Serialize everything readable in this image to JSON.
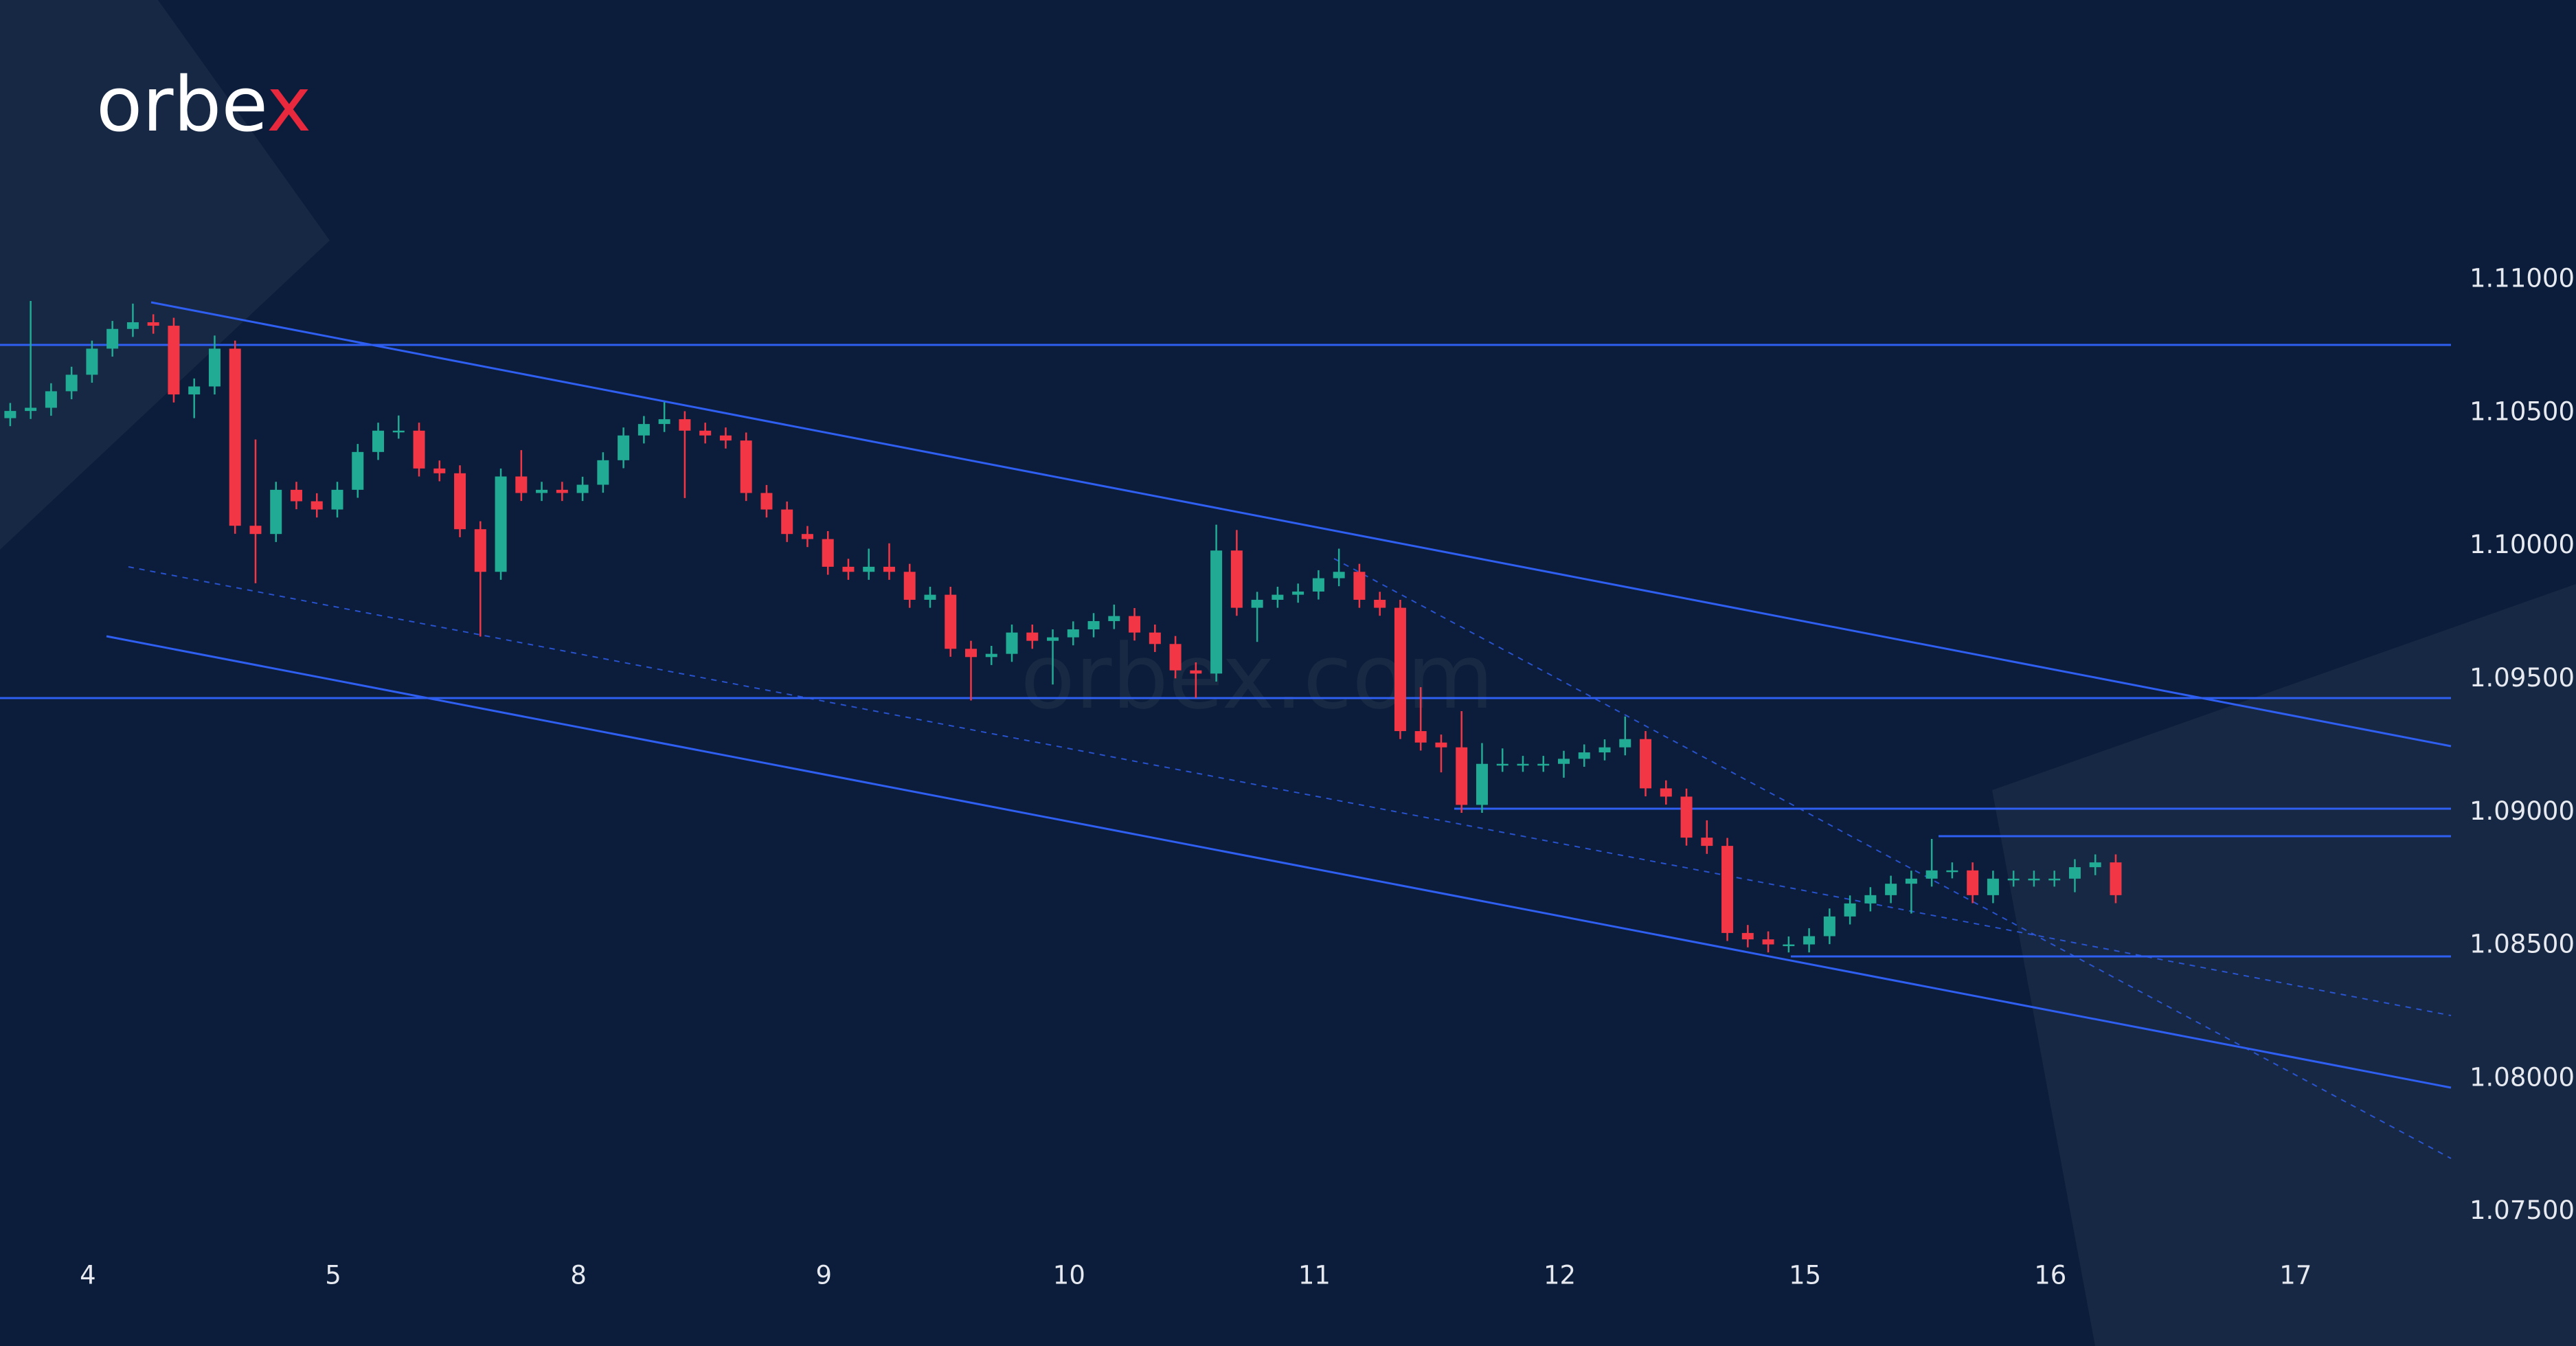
{
  "logo": {
    "main": "orbe",
    "accent": "x"
  },
  "watermark": "orbex.com",
  "chart_data": {
    "type": "candlestick",
    "up_color": "#22ab94",
    "down_color": "#f23645",
    "xlim": [
      -0.5,
      119.4
    ],
    "xticks": [
      {
        "value": 3.8,
        "label": "4"
      },
      {
        "value": 15.8,
        "label": "5"
      },
      {
        "value": 27.8,
        "label": "8"
      },
      {
        "value": 39.8,
        "label": "9"
      },
      {
        "value": 51.8,
        "label": "10"
      },
      {
        "value": 63.8,
        "label": "11"
      },
      {
        "value": 75.8,
        "label": "12"
      },
      {
        "value": 87.8,
        "label": "15"
      },
      {
        "value": 99.8,
        "label": "16"
      },
      {
        "value": 111.8,
        "label": "17"
      }
    ],
    "ylim": [
      1.0736,
      1.1205
    ],
    "yticks": [
      {
        "value": 1.075,
        "label": "1.07500"
      },
      {
        "value": 1.08,
        "label": "1.08000"
      },
      {
        "value": 1.085,
        "label": "1.08500"
      },
      {
        "value": 1.09,
        "label": "1.09000"
      },
      {
        "value": 1.095,
        "label": "1.09500"
      },
      {
        "value": 1.1,
        "label": "1.10000"
      },
      {
        "value": 1.105,
        "label": "1.10500"
      },
      {
        "value": 1.11,
        "label": "1.11000"
      }
    ],
    "open": [
      1.1048,
      1.10507,
      1.10519,
      1.10581,
      1.10643,
      1.10741,
      1.10815,
      1.1084,
      1.10827,
      1.10569,
      1.10599,
      1.10741,
      1.10076,
      1.10045,
      1.10211,
      1.10168,
      1.10137,
      1.10211,
      1.10353,
      1.10433,
      1.10433,
      1.10291,
      1.10273,
      1.10063,
      1.09903,
      1.10261,
      1.10199,
      1.10211,
      1.10199,
      1.1023,
      1.10322,
      1.10415,
      1.10458,
      1.10476,
      1.10433,
      1.10415,
      1.10396,
      1.10199,
      1.10137,
      1.10045,
      1.10026,
      1.09922,
      1.09903,
      1.09922,
      1.09903,
      1.09798,
      1.09817,
      1.09614,
      1.09583,
      1.09595,
      1.09675,
      1.09644,
      1.09657,
      1.09687,
      1.09718,
      1.09737,
      1.09675,
      1.09632,
      1.09533,
      1.09521,
      1.09983,
      1.09768,
      1.09798,
      1.09817,
      1.09829,
      1.09879,
      1.09903,
      1.09798,
      1.09768,
      1.09305,
      1.09262,
      1.09244,
      1.09028,
      1.09182,
      1.09182,
      1.09182,
      1.09182,
      1.09201,
      1.09225,
      1.09244,
      1.09275,
      1.0909,
      1.09059,
      1.08905,
      1.08874,
      1.08547,
      1.08523,
      1.08504,
      1.08504,
      1.08535,
      1.08609,
      1.08658,
      1.08689,
      1.08732,
      1.08751,
      1.08782,
      1.08782,
      1.08689,
      1.08751,
      1.08751,
      1.08751,
      1.08751,
      1.08794,
      1.08812
    ],
    "high": [
      1.10537,
      1.1092,
      1.10611,
      1.10673,
      1.10771,
      1.10845,
      1.1091,
      1.1087,
      1.10857,
      1.10629,
      1.1079,
      1.10771,
      1.104,
      1.10241,
      1.10241,
      1.10198,
      1.10241,
      1.10383,
      1.10463,
      1.1049,
      1.10463,
      1.10321,
      1.10303,
      1.10093,
      1.10291,
      1.1036,
      1.10241,
      1.10241,
      1.1026,
      1.10352,
      1.10445,
      1.10488,
      1.1054,
      1.10506,
      1.10463,
      1.10445,
      1.10426,
      1.10229,
      1.10167,
      1.10075,
      1.10056,
      1.09952,
      1.0999,
      1.1001,
      1.09933,
      1.09847,
      1.09847,
      1.09644,
      1.09625,
      1.09705,
      1.09705,
      1.09687,
      1.09717,
      1.09748,
      1.0978,
      1.09767,
      1.09705,
      1.09662,
      1.09563,
      1.1008,
      1.1006,
      1.09828,
      1.09847,
      1.09859,
      1.09909,
      1.0999,
      1.09933,
      1.09828,
      1.09798,
      1.0947,
      1.09292,
      1.0938,
      1.0926,
      1.0924,
      1.09212,
      1.09212,
      1.09231,
      1.09255,
      1.09274,
      1.0936,
      1.09305,
      1.0912,
      1.09089,
      1.0897,
      1.08904,
      1.08577,
      1.08553,
      1.08534,
      1.08565,
      1.08639,
      1.08688,
      1.08719,
      1.08762,
      1.08781,
      1.089,
      1.08812,
      1.08812,
      1.08781,
      1.08781,
      1.08781,
      1.08781,
      1.08824,
      1.08842,
      1.08842
    ],
    "low": [
      1.1045,
      1.10477,
      1.10489,
      1.10551,
      1.10613,
      1.10711,
      1.10785,
      1.10797,
      1.10539,
      1.1048,
      1.10569,
      1.10046,
      1.0986,
      1.10015,
      1.10138,
      1.10107,
      1.10107,
      1.10181,
      1.10323,
      1.10403,
      1.10261,
      1.10243,
      1.10033,
      1.0966,
      1.09873,
      1.10169,
      1.10169,
      1.10169,
      1.10169,
      1.102,
      1.10292,
      1.10385,
      1.10428,
      1.1018,
      1.10385,
      1.10366,
      1.10169,
      1.10107,
      1.10015,
      1.09996,
      1.09892,
      1.09873,
      1.09873,
      1.09873,
      1.09768,
      1.09768,
      1.09584,
      1.0942,
      1.09553,
      1.09565,
      1.09614,
      1.0948,
      1.09627,
      1.09657,
      1.09688,
      1.09645,
      1.09602,
      1.09503,
      1.0943,
      1.09491,
      1.09738,
      1.0964,
      1.09768,
      1.09787,
      1.09799,
      1.09849,
      1.09768,
      1.09738,
      1.09275,
      1.09232,
      1.0915,
      1.08998,
      1.08998,
      1.09152,
      1.09152,
      1.09152,
      1.0913,
      1.09171,
      1.09195,
      1.09214,
      1.0906,
      1.09029,
      1.08875,
      1.08844,
      1.08517,
      1.08493,
      1.08474,
      1.08474,
      1.08474,
      1.08505,
      1.08579,
      1.08628,
      1.08659,
      1.0862,
      1.08721,
      1.08752,
      1.08659,
      1.08659,
      1.08721,
      1.08721,
      1.08721,
      1.087,
      1.08764,
      1.08659
    ],
    "close": [
      1.10507,
      1.10519,
      1.10581,
      1.10643,
      1.10741,
      1.10815,
      1.1084,
      1.10827,
      1.10569,
      1.10599,
      1.10741,
      1.10076,
      1.10045,
      1.10211,
      1.10168,
      1.10137,
      1.10211,
      1.10353,
      1.10433,
      1.10433,
      1.10291,
      1.10273,
      1.10063,
      1.09903,
      1.10261,
      1.10199,
      1.10211,
      1.10199,
      1.1023,
      1.10322,
      1.10415,
      1.10458,
      1.10476,
      1.10433,
      1.10415,
      1.10396,
      1.10199,
      1.10137,
      1.10045,
      1.10026,
      1.09922,
      1.09903,
      1.09922,
      1.09903,
      1.09798,
      1.09817,
      1.09614,
      1.09583,
      1.09595,
      1.09675,
      1.09644,
      1.09657,
      1.09687,
      1.09718,
      1.09737,
      1.09675,
      1.09632,
      1.09533,
      1.09521,
      1.09983,
      1.09768,
      1.09798,
      1.09817,
      1.09829,
      1.09879,
      1.09903,
      1.09798,
      1.09768,
      1.09305,
      1.09262,
      1.09244,
      1.09028,
      1.09182,
      1.09182,
      1.09182,
      1.09182,
      1.09201,
      1.09225,
      1.09244,
      1.09275,
      1.0909,
      1.09059,
      1.08905,
      1.08874,
      1.08547,
      1.08523,
      1.08504,
      1.08504,
      1.08535,
      1.08609,
      1.08658,
      1.08689,
      1.08732,
      1.08751,
      1.08782,
      1.08782,
      1.08689,
      1.08751,
      1.08751,
      1.08751,
      1.08751,
      1.08794,
      1.08812,
      1.08689
    ]
  }
}
